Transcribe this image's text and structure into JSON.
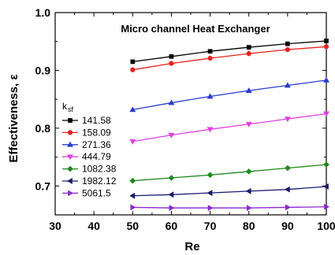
{
  "chart_data": {
    "type": "line",
    "title": "Micro channel Heat Exchanger",
    "xlabel": "Re",
    "ylabel": "Effectiveness, ε",
    "xlim": [
      30,
      100
    ],
    "ylim": [
      0.65,
      1.0
    ],
    "x_ticks": [
      "30",
      "40",
      "50",
      "60",
      "70",
      "80",
      "90",
      "100"
    ],
    "y_ticks": [
      "0.7",
      "0.8",
      "0.9",
      "1.0"
    ],
    "legend_title": "k",
    "legend_title_sub": "sf",
    "legend_position": "bottom-left",
    "grid": false,
    "x": [
      50,
      60,
      70,
      80,
      90,
      100
    ],
    "series": [
      {
        "name": "141.58",
        "color": "#000000",
        "marker": "square",
        "values": [
          0.915,
          0.924,
          0.933,
          0.94,
          0.946,
          0.951
        ]
      },
      {
        "name": "158.09",
        "color": "#e8201e",
        "marker": "circle",
        "values": [
          0.901,
          0.912,
          0.921,
          0.929,
          0.936,
          0.941
        ]
      },
      {
        "name": "271.36",
        "color": "#2a3ccc",
        "marker": "triangle-up",
        "values": [
          0.832,
          0.844,
          0.855,
          0.865,
          0.874,
          0.883
        ]
      },
      {
        "name": "444.79",
        "color": "#e040e0",
        "marker": "triangle-down",
        "values": [
          0.777,
          0.788,
          0.798,
          0.807,
          0.816,
          0.825
        ]
      },
      {
        "name": "1082.38",
        "color": "#1e8a1e",
        "marker": "diamond",
        "values": [
          0.709,
          0.714,
          0.719,
          0.725,
          0.731,
          0.737
        ]
      },
      {
        "name": "1982.12",
        "color": "#1a1a6e",
        "marker": "triangle-left",
        "values": [
          0.683,
          0.685,
          0.688,
          0.691,
          0.694,
          0.699
        ]
      },
      {
        "name": "5061.5",
        "color": "#8a28d0",
        "marker": "triangle-right",
        "values": [
          0.663,
          0.662,
          0.662,
          0.662,
          0.663,
          0.664
        ]
      }
    ]
  }
}
